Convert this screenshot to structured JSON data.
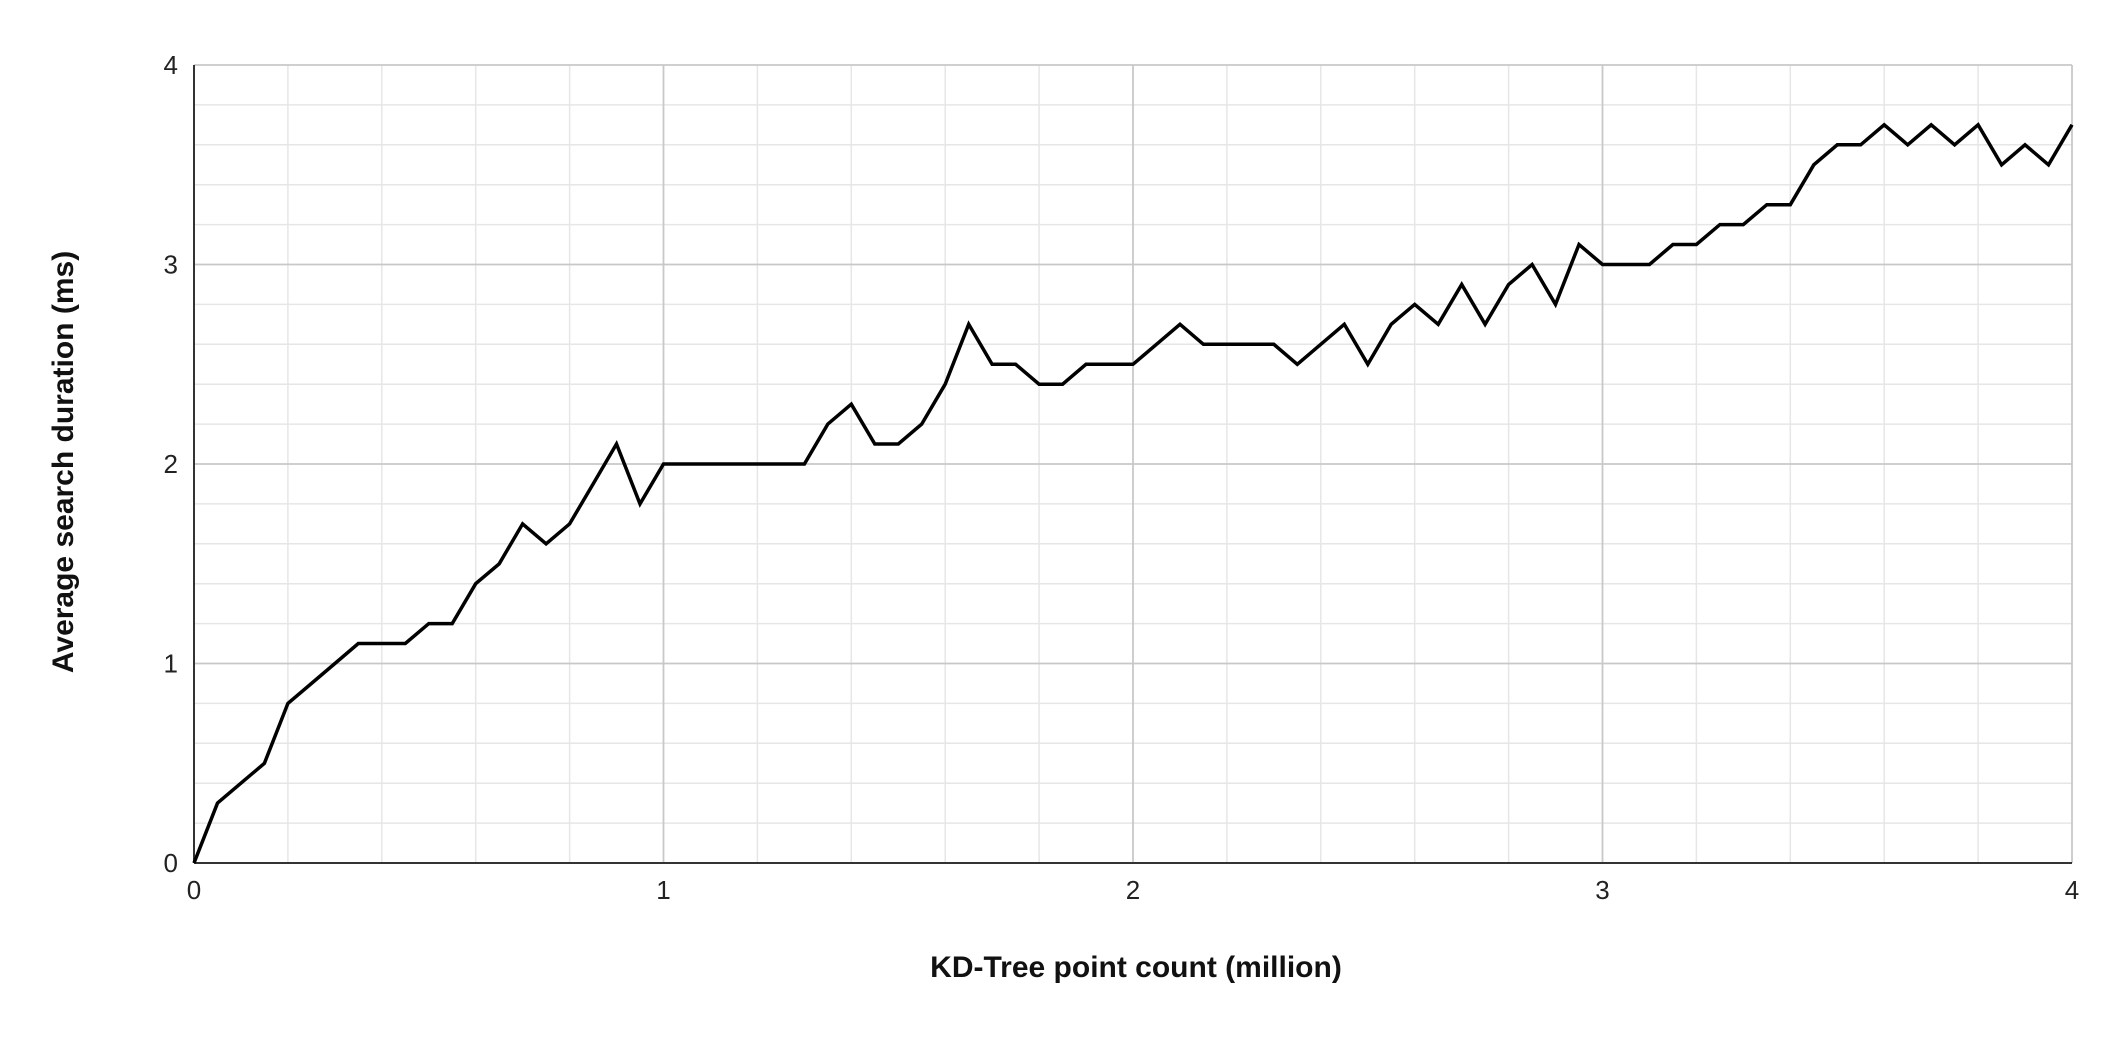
{
  "chart_data": {
    "type": "line",
    "xlabel": "KD-Tree point count (million)",
    "ylabel": "Average search duration (ms)",
    "xlim": [
      0,
      4
    ],
    "ylim": [
      0,
      4
    ],
    "x_ticks": [
      "0",
      "1",
      "2",
      "3",
      "4"
    ],
    "y_ticks": [
      "0",
      "1",
      "2",
      "3",
      "4"
    ],
    "grid": true,
    "legend": "none",
    "line_color": "#000000",
    "series": [
      {
        "x": [
          0,
          0.05,
          0.1,
          0.15,
          0.2,
          0.25,
          0.3,
          0.35,
          0.4,
          0.45,
          0.5,
          0.55,
          0.6,
          0.65,
          0.7,
          0.75,
          0.8,
          0.85,
          0.9,
          0.95,
          1.0,
          1.05,
          1.1,
          1.15,
          1.2,
          1.25,
          1.3,
          1.35,
          1.4,
          1.45,
          1.5,
          1.55,
          1.6,
          1.65,
          1.7,
          1.75,
          1.8,
          1.85,
          1.9,
          1.95,
          2.0,
          2.05,
          2.1,
          2.15,
          2.2,
          2.25,
          2.3,
          2.35,
          2.4,
          2.45,
          2.5,
          2.55,
          2.6,
          2.65,
          2.7,
          2.75,
          2.8,
          2.85,
          2.9,
          2.95,
          3.0,
          3.05,
          3.1,
          3.15,
          3.2,
          3.25,
          3.3,
          3.35,
          3.4,
          3.45,
          3.5,
          3.55,
          3.6,
          3.65,
          3.7,
          3.75,
          3.8,
          3.85,
          3.9,
          3.95,
          4.0
        ],
        "values": [
          0,
          0.3,
          0.4,
          0.5,
          0.8,
          0.9,
          1.0,
          1.1,
          1.1,
          1.1,
          1.2,
          1.2,
          1.4,
          1.5,
          1.7,
          1.6,
          1.7,
          1.9,
          2.1,
          1.8,
          2.0,
          2.0,
          2.0,
          2.0,
          2.0,
          2.0,
          2.0,
          2.2,
          2.3,
          2.1,
          2.1,
          2.2,
          2.4,
          2.7,
          2.5,
          2.5,
          2.4,
          2.4,
          2.5,
          2.5,
          2.5,
          2.6,
          2.7,
          2.6,
          2.6,
          2.6,
          2.6,
          2.5,
          2.6,
          2.7,
          2.5,
          2.7,
          2.8,
          2.7,
          2.9,
          2.7,
          2.9,
          3.0,
          2.8,
          3.1,
          3.0,
          3.0,
          3.0,
          3.1,
          3.1,
          3.2,
          3.2,
          3.3,
          3.3,
          3.5,
          3.6,
          3.6,
          3.7,
          3.6,
          3.7,
          3.6,
          3.7,
          3.5,
          3.6,
          3.5,
          3.7
        ]
      }
    ]
  }
}
